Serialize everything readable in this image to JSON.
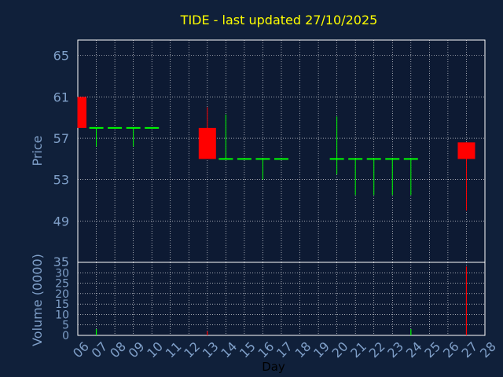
{
  "chart_data": {
    "type": "candlestick",
    "title": "TIDE - last updated 27/10/2025",
    "xlabel": "Day",
    "price_panel": {
      "ylabel": "Price",
      "yticks": [
        65,
        61,
        57,
        53,
        49
      ],
      "ylim": [
        45,
        66.5
      ]
    },
    "volume_panel": {
      "ylabel": "Volume (0000)",
      "yticks": [
        35,
        30,
        25,
        20,
        15,
        10,
        5,
        0
      ],
      "ylim": [
        0,
        35
      ]
    },
    "x_tick_labels": [
      "06",
      "07",
      "08",
      "09",
      "10",
      "11",
      "12",
      "13",
      "14",
      "15",
      "16",
      "17",
      "18",
      "19",
      "20",
      "21",
      "22",
      "23",
      "24",
      "25",
      "26",
      "27",
      "28"
    ],
    "candles": [
      {
        "day": "06",
        "open": 58,
        "high": 61,
        "low": 58,
        "close": 61,
        "color": "#ff0000"
      },
      {
        "day": "07",
        "open": 58,
        "high": 58,
        "low": 56.2,
        "close": 58,
        "color": "#00ff00"
      },
      {
        "day": "08",
        "open": 58,
        "high": 58,
        "low": 58,
        "close": 58,
        "color": "#00ff00"
      },
      {
        "day": "09",
        "open": 58,
        "high": 58,
        "low": 56.2,
        "close": 58,
        "color": "#00ff00"
      },
      {
        "day": "10",
        "open": 58,
        "high": 58,
        "low": 58,
        "close": 58,
        "color": "#00ff00"
      },
      {
        "day": "13",
        "open": 58,
        "high": 60,
        "low": 55,
        "close": 55,
        "color": "#ff0000"
      },
      {
        "day": "14",
        "open": 55,
        "high": 59.3,
        "low": 55,
        "close": 55,
        "color": "#00ff00"
      },
      {
        "day": "15",
        "open": 55,
        "high": 55,
        "low": 55,
        "close": 55,
        "color": "#00ff00"
      },
      {
        "day": "16",
        "open": 55,
        "high": 55,
        "low": 53,
        "close": 55,
        "color": "#00ff00"
      },
      {
        "day": "17",
        "open": 55,
        "high": 55,
        "low": 55,
        "close": 55,
        "color": "#00ff00"
      },
      {
        "day": "20",
        "open": 55,
        "high": 59.1,
        "low": 53.5,
        "close": 55,
        "color": "#00ff00"
      },
      {
        "day": "21",
        "open": 55,
        "high": 55,
        "low": 51.5,
        "close": 55,
        "color": "#00ff00"
      },
      {
        "day": "22",
        "open": 55,
        "high": 55,
        "low": 51.5,
        "close": 55,
        "color": "#00ff00"
      },
      {
        "day": "23",
        "open": 55,
        "high": 55,
        "low": 51.5,
        "close": 55,
        "color": "#00ff00"
      },
      {
        "day": "24",
        "open": 55,
        "high": 55,
        "low": 51.5,
        "close": 55,
        "color": "#00ff00"
      },
      {
        "day": "27",
        "open": 55,
        "high": 56.6,
        "low": 50,
        "close": 56.6,
        "color": "#ff0000"
      }
    ],
    "volume": [
      {
        "day": "07",
        "value": 3,
        "color": "#00ff00"
      },
      {
        "day": "13",
        "value": 2,
        "color": "#ff0000"
      },
      {
        "day": "24",
        "value": 3,
        "color": "#00ff00"
      },
      {
        "day": "27",
        "value": 33,
        "color": "#ff0000"
      }
    ],
    "grid": true
  },
  "colors": {
    "background": "#10203a",
    "plot_background": "#0d1a33",
    "frame": "#ffffff",
    "grid": "#ffffff",
    "up": "#00ff00",
    "down": "#ff0000",
    "title": "#ffff00",
    "tick_text": "#7f9fc8"
  }
}
